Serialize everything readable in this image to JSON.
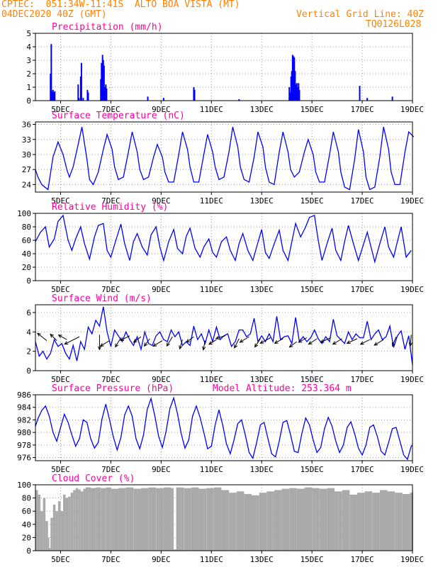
{
  "header": {
    "line1": "CPTEC:  051:34W-11:41S  ALTO BOA VISTA (MT)",
    "line2": "04DEC2020 40Z (GMT)",
    "right1": "Vertical Grid Line: 40Z",
    "right2": "TQ0126L028"
  },
  "colors": {
    "title": "#ff00a0",
    "header": "#ff8000",
    "series": "#0000ff",
    "cloud": "#aaaaaa",
    "wind_arrow": "#000000"
  },
  "x_axis": {
    "ticks": [
      "5DEC",
      "7DEC",
      "9DEC",
      "11DEC",
      "13DEC",
      "15DEC",
      "17DEC",
      "19DEC"
    ]
  },
  "chart_data": [
    {
      "id": "precip",
      "type": "bar",
      "title": "Precipitation (mm/h)",
      "ylim": [
        0,
        5
      ],
      "yticks": [
        "0",
        "1",
        "2",
        "3",
        "4",
        "5"
      ],
      "x": [
        4.6,
        4.63,
        4.67,
        4.7,
        4.73,
        4.77,
        5.7,
        5.73,
        5.8,
        5.83,
        5.9,
        6.07,
        6.1,
        6.6,
        6.63,
        6.67,
        6.7,
        6.73,
        6.77,
        6.8,
        6.83,
        8.47,
        9.1,
        10.3,
        10.33,
        12.1,
        14.1,
        14.13,
        14.17,
        14.2,
        14.23,
        14.27,
        14.3,
        14.33,
        14.37,
        14.4,
        14.43,
        14.47,
        14.5,
        16.9,
        17.2,
        18.2
      ],
      "values": [
        2.0,
        4.2,
        0.7,
        0.8,
        0.6,
        0.7,
        1.2,
        0.2,
        1.8,
        2.8,
        0.2,
        0.8,
        0.6,
        1.6,
        2.8,
        3.4,
        3.0,
        2.6,
        1.0,
        1.2,
        0.9,
        0.3,
        0.2,
        1.0,
        0.8,
        0.1,
        1.0,
        0.6,
        1.8,
        2.2,
        3.4,
        3.3,
        3.2,
        2.2,
        1.2,
        1.3,
        1.0,
        1.3,
        0.8,
        1.1,
        0.2,
        0.3
      ]
    },
    {
      "id": "temp",
      "type": "line",
      "title": "Surface Temperature (nC)",
      "ylim": [
        22.5,
        36.5
      ],
      "yticks": [
        "24",
        "27",
        "30",
        "33",
        "36"
      ],
      "x": [
        4.0,
        4.1,
        4.25,
        4.5,
        4.7,
        4.9,
        5.1,
        5.25,
        5.35,
        5.5,
        5.7,
        5.85,
        6.05,
        6.15,
        6.3,
        6.5,
        6.7,
        6.85,
        7.05,
        7.15,
        7.3,
        7.5,
        7.7,
        7.85,
        8.05,
        8.15,
        8.3,
        8.5,
        8.7,
        8.85,
        9.05,
        9.15,
        9.3,
        9.5,
        9.7,
        9.85,
        10.05,
        10.15,
        10.3,
        10.5,
        10.7,
        10.85,
        11.05,
        11.15,
        11.3,
        11.5,
        11.7,
        11.85,
        12.05,
        12.15,
        12.3,
        12.5,
        12.7,
        12.85,
        13.05,
        13.15,
        13.3,
        13.5,
        13.7,
        13.85,
        14.05,
        14.15,
        14.3,
        14.5,
        14.7,
        14.85,
        15.05,
        15.15,
        15.3,
        15.5,
        15.7,
        15.85,
        16.05,
        16.15,
        16.3,
        16.5,
        16.7,
        16.85,
        17.05,
        17.15,
        17.3,
        17.5,
        17.7,
        17.85,
        18.05,
        18.15,
        18.3,
        18.5,
        18.7,
        18.85,
        19.05
      ],
      "values": [
        27.0,
        25.5,
        24.0,
        23.0,
        29.5,
        32.5,
        30.0,
        27.0,
        25.5,
        27.5,
        32.0,
        35.5,
        29.0,
        25.0,
        24.0,
        26.5,
        31.0,
        34.0,
        31.0,
        27.5,
        25.0,
        25.5,
        30.5,
        34.5,
        30.5,
        27.0,
        25.0,
        25.5,
        29.5,
        32.0,
        29.5,
        26.5,
        24.5,
        24.5,
        30.0,
        34.5,
        31.0,
        27.5,
        24.5,
        24.5,
        30.0,
        34.0,
        30.5,
        27.5,
        25.0,
        25.5,
        30.5,
        35.5,
        31.5,
        27.5,
        25.0,
        24.5,
        29.5,
        34.5,
        31.5,
        27.5,
        24.5,
        24.0,
        30.5,
        34.5,
        30.5,
        27.0,
        25.5,
        26.5,
        30.5,
        33.0,
        30.0,
        26.5,
        24.5,
        24.5,
        30.0,
        34.5,
        30.5,
        26.5,
        23.5,
        23.0,
        29.0,
        35.0,
        30.5,
        25.5,
        23.0,
        23.5,
        29.5,
        35.5,
        31.0,
        26.5,
        24.0,
        24.0,
        30.5,
        34.5,
        33.5
      ]
    },
    {
      "id": "rh",
      "type": "line",
      "title": "Relative Humidity (%)",
      "ylim": [
        0,
        100
      ],
      "yticks": [
        "0",
        "20",
        "40",
        "60",
        "80",
        "100"
      ],
      "x": [
        4.0,
        4.2,
        4.4,
        4.55,
        4.75,
        4.9,
        5.1,
        5.3,
        5.45,
        5.6,
        5.8,
        5.95,
        6.15,
        6.35,
        6.5,
        6.7,
        6.85,
        7.0,
        7.2,
        7.4,
        7.55,
        7.75,
        7.9,
        8.05,
        8.25,
        8.45,
        8.6,
        8.8,
        8.95,
        9.1,
        9.3,
        9.5,
        9.65,
        9.85,
        10.0,
        10.15,
        10.35,
        10.55,
        10.7,
        10.9,
        11.05,
        11.2,
        11.4,
        11.6,
        11.75,
        11.95,
        12.1,
        12.25,
        12.45,
        12.65,
        12.8,
        13.0,
        13.15,
        13.3,
        13.5,
        13.7,
        13.85,
        14.05,
        14.2,
        14.35,
        14.55,
        14.75,
        14.9,
        15.1,
        15.25,
        15.4,
        15.6,
        15.8,
        15.95,
        16.15,
        16.3,
        16.45,
        16.65,
        16.85,
        17.0,
        17.2,
        17.35,
        17.5,
        17.7,
        17.9,
        18.05,
        18.25,
        18.4,
        18.55,
        18.75,
        18.95
      ],
      "values": [
        58,
        72,
        80,
        50,
        62,
        88,
        97,
        60,
        45,
        62,
        80,
        55,
        32,
        65,
        82,
        85,
        45,
        35,
        60,
        84,
        55,
        30,
        58,
        70,
        50,
        38,
        68,
        80,
        50,
        30,
        58,
        76,
        48,
        40,
        66,
        78,
        48,
        35,
        50,
        62,
        42,
        35,
        58,
        65,
        45,
        30,
        55,
        70,
        45,
        30,
        50,
        76,
        42,
        33,
        55,
        75,
        45,
        30,
        58,
        85,
        65,
        80,
        94,
        97,
        60,
        30,
        55,
        78,
        45,
        30,
        58,
        82,
        55,
        30,
        48,
        72,
        50,
        28,
        55,
        80,
        50,
        35,
        58,
        80,
        35,
        45
      ]
    },
    {
      "id": "wind",
      "type": "line",
      "title": "Surface Wind (m/s)",
      "ylim": [
        0,
        6.8
      ],
      "yticks": [
        "0",
        "2",
        "4",
        "6"
      ],
      "x": [
        4.0,
        4.15,
        4.3,
        4.45,
        4.6,
        4.75,
        4.9,
        5.05,
        5.2,
        5.35,
        5.5,
        5.65,
        5.8,
        5.95,
        6.1,
        6.25,
        6.4,
        6.55,
        6.7,
        6.85,
        7.0,
        7.15,
        7.3,
        7.45,
        7.6,
        7.75,
        7.9,
        8.05,
        8.2,
        8.35,
        8.5,
        8.65,
        8.8,
        8.95,
        9.1,
        9.25,
        9.4,
        9.55,
        9.7,
        9.85,
        10.0,
        10.15,
        10.3,
        10.45,
        10.6,
        10.75,
        10.9,
        11.05,
        11.2,
        11.35,
        11.5,
        11.65,
        11.8,
        11.95,
        12.1,
        12.25,
        12.4,
        12.55,
        12.7,
        12.85,
        13.0,
        13.15,
        13.3,
        13.45,
        13.6,
        13.75,
        13.9,
        14.05,
        14.2,
        14.35,
        14.5,
        14.65,
        14.8,
        14.95,
        15.1,
        15.25,
        15.4,
        15.55,
        15.7,
        15.85,
        16.0,
        16.15,
        16.3,
        16.45,
        16.6,
        16.75,
        16.9,
        17.05,
        17.2,
        17.35,
        17.5,
        17.65,
        17.8,
        17.95,
        18.1,
        18.25,
        18.4,
        18.55,
        18.7,
        18.85,
        19.0
      ],
      "values": [
        3.0,
        1.5,
        2.0,
        1.2,
        1.8,
        3.2,
        2.5,
        2.8,
        1.8,
        1.2,
        2.6,
        1.0,
        3.0,
        2.2,
        4.5,
        3.8,
        5.2,
        4.6,
        6.6,
        4.0,
        2.5,
        4.2,
        3.6,
        3.0,
        4.0,
        3.2,
        2.6,
        3.5,
        2.2,
        4.0,
        2.8,
        2.6,
        3.6,
        4.0,
        3.2,
        3.0,
        4.2,
        3.5,
        4.0,
        2.6,
        3.0,
        2.6,
        4.6,
        3.2,
        3.8,
        2.8,
        4.2,
        3.0,
        4.5,
        3.2,
        3.6,
        3.8,
        2.5,
        3.0,
        4.2,
        4.2,
        3.5,
        3.8,
        5.4,
        3.0,
        3.6,
        3.0,
        3.8,
        3.0,
        5.6,
        3.2,
        3.5,
        3.6,
        2.8,
        5.5,
        3.0,
        3.5,
        3.0,
        3.4,
        4.2,
        3.3,
        2.8,
        3.5,
        3.0,
        5.3,
        3.6,
        3.2,
        2.8,
        4.0,
        3.2,
        3.8,
        3.4,
        3.4,
        5.1,
        3.2,
        3.8,
        4.2,
        3.2,
        3.5,
        4.6,
        2.4,
        3.6,
        4.1,
        2.2,
        3.6,
        0.6
      ],
      "arrows": [
        {
          "x": 4.45,
          "y": 3.1,
          "u": -1.0,
          "v": 0.8
        },
        {
          "x": 4.85,
          "y": 3.1,
          "u": -0.7,
          "v": 0.7
        },
        {
          "x": 5.25,
          "y": 3.2,
          "u": -0.9,
          "v": 0.5
        },
        {
          "x": 5.75,
          "y": 3.5,
          "u": -1.6,
          "v": -0.8
        },
        {
          "x": 6.55,
          "y": 3.7,
          "u": 0.0,
          "v": -1.6
        },
        {
          "x": 6.95,
          "y": 3.1,
          "u": -1.0,
          "v": -0.6
        },
        {
          "x": 7.4,
          "y": 3.4,
          "u": -0.6,
          "v": -1.0
        },
        {
          "x": 7.75,
          "y": 3.6,
          "u": -1.0,
          "v": -0.5
        },
        {
          "x": 8.2,
          "y": 3.5,
          "u": -0.8,
          "v": -0.6
        },
        {
          "x": 8.55,
          "y": 3.3,
          "u": -0.6,
          "v": -0.8
        },
        {
          "x": 9.05,
          "y": 3.1,
          "u": -1.0,
          "v": -0.6
        },
        {
          "x": 9.45,
          "y": 3.5,
          "u": -0.6,
          "v": -1.0
        },
        {
          "x": 9.85,
          "y": 3.2,
          "u": -0.3,
          "v": -1.0
        },
        {
          "x": 10.3,
          "y": 3.5,
          "u": -0.8,
          "v": -0.6
        },
        {
          "x": 10.75,
          "y": 3.1,
          "u": -0.2,
          "v": -1.0
        },
        {
          "x": 11.2,
          "y": 3.2,
          "u": -0.8,
          "v": -0.5
        },
        {
          "x": 11.55,
          "y": 3.6,
          "u": -1.0,
          "v": -0.3
        },
        {
          "x": 12.1,
          "y": 3.3,
          "u": -0.5,
          "v": -1.0
        },
        {
          "x": 12.5,
          "y": 3.5,
          "u": -1.0,
          "v": -0.6
        },
        {
          "x": 12.95,
          "y": 3.3,
          "u": -0.6,
          "v": -0.9
        },
        {
          "x": 13.35,
          "y": 3.4,
          "u": -1.1,
          "v": -0.6
        },
        {
          "x": 13.85,
          "y": 3.3,
          "u": -0.9,
          "v": -0.5
        },
        {
          "x": 14.4,
          "y": 3.0,
          "u": -0.8,
          "v": -0.6
        },
        {
          "x": 14.8,
          "y": 3.4,
          "u": -0.9,
          "v": -0.5
        },
        {
          "x": 15.2,
          "y": 3.3,
          "u": -0.9,
          "v": -0.6
        },
        {
          "x": 15.75,
          "y": 3.4,
          "u": -1.1,
          "v": -0.5
        },
        {
          "x": 16.2,
          "y": 3.3,
          "u": -1.0,
          "v": -0.6
        },
        {
          "x": 16.8,
          "y": 3.3,
          "u": -1.1,
          "v": -0.5
        },
        {
          "x": 17.3,
          "y": 3.2,
          "u": -1.0,
          "v": -0.5
        },
        {
          "x": 17.85,
          "y": 3.2,
          "u": -1.0,
          "v": -0.6
        },
        {
          "x": 18.35,
          "y": 3.5,
          "u": -0.4,
          "v": -1.0
        },
        {
          "x": 18.95,
          "y": 3.7,
          "u": -0.1,
          "v": -1.2
        }
      ]
    },
    {
      "id": "press",
      "type": "line",
      "title": "Surface Pressure (hPa)",
      "subtitle": "Model Altitude: 253.364 m",
      "ylim": [
        975.5,
        986
      ],
      "yticks": [
        "976",
        "978",
        "980",
        "982",
        "984",
        "986"
      ],
      "x": [
        4.0,
        4.1,
        4.25,
        4.4,
        4.55,
        4.7,
        4.85,
        5.0,
        5.15,
        5.3,
        5.45,
        5.6,
        5.75,
        5.9,
        6.05,
        6.2,
        6.35,
        6.5,
        6.65,
        6.8,
        6.95,
        7.1,
        7.25,
        7.4,
        7.55,
        7.7,
        7.85,
        8.0,
        8.15,
        8.3,
        8.45,
        8.6,
        8.75,
        8.9,
        9.05,
        9.2,
        9.35,
        9.5,
        9.65,
        9.8,
        9.95,
        10.1,
        10.25,
        10.4,
        10.55,
        10.7,
        10.85,
        11.0,
        11.15,
        11.3,
        11.45,
        11.6,
        11.75,
        11.9,
        12.05,
        12.2,
        12.35,
        12.5,
        12.65,
        12.8,
        12.95,
        13.1,
        13.25,
        13.4,
        13.55,
        13.7,
        13.85,
        14.0,
        14.15,
        14.3,
        14.45,
        14.6,
        14.75,
        14.9,
        15.05,
        15.2,
        15.35,
        15.5,
        15.65,
        15.8,
        15.95,
        16.1,
        16.25,
        16.4,
        16.55,
        16.7,
        16.85,
        17.0,
        17.15,
        17.3,
        17.45,
        17.6,
        17.75,
        17.9,
        18.05,
        18.2,
        18.35,
        18.5,
        18.65,
        18.8,
        18.95,
        19.0
      ],
      "values": [
        981.0,
        982.2,
        983.5,
        984.2,
        982.6,
        980.0,
        978.6,
        980.8,
        982.9,
        981.6,
        979.6,
        977.8,
        979.0,
        982.0,
        981.6,
        979.0,
        977.5,
        978.4,
        982.2,
        984.5,
        982.0,
        979.3,
        977.2,
        979.2,
        982.8,
        984.2,
        982.6,
        979.0,
        977.4,
        979.6,
        983.7,
        985.4,
        982.6,
        979.4,
        977.6,
        980.2,
        983.8,
        985.5,
        983.0,
        979.8,
        977.5,
        978.8,
        982.6,
        984.2,
        982.4,
        980.0,
        977.4,
        977.8,
        981.2,
        983.6,
        981.2,
        978.2,
        976.6,
        978.8,
        981.4,
        982.0,
        979.6,
        976.8,
        975.9,
        978.4,
        981.2,
        981.6,
        979.0,
        976.6,
        976.1,
        978.6,
        981.6,
        981.9,
        979.6,
        977.0,
        976.8,
        979.8,
        982.3,
        981.2,
        978.8,
        976.8,
        977.6,
        980.6,
        982.4,
        981.0,
        978.6,
        976.8,
        978.0,
        980.8,
        981.7,
        979.8,
        977.5,
        976.4,
        978.0,
        980.8,
        981.2,
        979.4,
        977.0,
        976.4,
        978.4,
        980.6,
        980.8,
        978.6,
        976.4,
        975.7,
        977.8,
        978.0
      ]
    },
    {
      "id": "cloud",
      "type": "bar",
      "title": "Cloud Cover (%)",
      "ylim": [
        0,
        100
      ],
      "yticks": [
        "0",
        "20",
        "40",
        "60",
        "80",
        "100"
      ],
      "x": [
        4.0,
        4.1,
        4.2,
        4.3,
        4.4,
        4.5,
        4.55,
        4.6,
        4.7,
        4.8,
        4.9,
        5.0,
        5.1,
        5.2,
        5.3,
        5.4,
        5.5,
        5.6,
        5.7,
        5.8,
        5.9,
        6.0,
        6.2,
        6.4,
        6.6,
        6.8,
        7.0,
        7.3,
        7.6,
        7.9,
        8.2,
        8.5,
        8.8,
        9.1,
        9.4,
        9.5,
        9.6,
        9.9,
        10.2,
        10.5,
        10.8,
        11.1,
        11.4,
        11.7,
        12.0,
        12.3,
        12.6,
        12.9,
        13.2,
        13.5,
        13.8,
        14.1,
        14.4,
        14.7,
        15.0,
        15.3,
        15.6,
        15.9,
        16.2,
        16.5,
        16.8,
        17.1,
        17.4,
        17.7,
        18.0,
        18.3,
        18.6,
        18.9,
        19.0
      ],
      "values": [
        92,
        85,
        60,
        80,
        45,
        20,
        4,
        50,
        70,
        60,
        75,
        60,
        85,
        80,
        82,
        88,
        92,
        95,
        93,
        90,
        94,
        96,
        95,
        96,
        95,
        96,
        94,
        95,
        96,
        94,
        95,
        96,
        95,
        96,
        95,
        2,
        96,
        95,
        96,
        94,
        95,
        96,
        92,
        88,
        90,
        86,
        84,
        88,
        90,
        92,
        94,
        95,
        94,
        96,
        95,
        94,
        95,
        90,
        92,
        85,
        88,
        90,
        88,
        92,
        90,
        88,
        86,
        88,
        90
      ]
    }
  ]
}
